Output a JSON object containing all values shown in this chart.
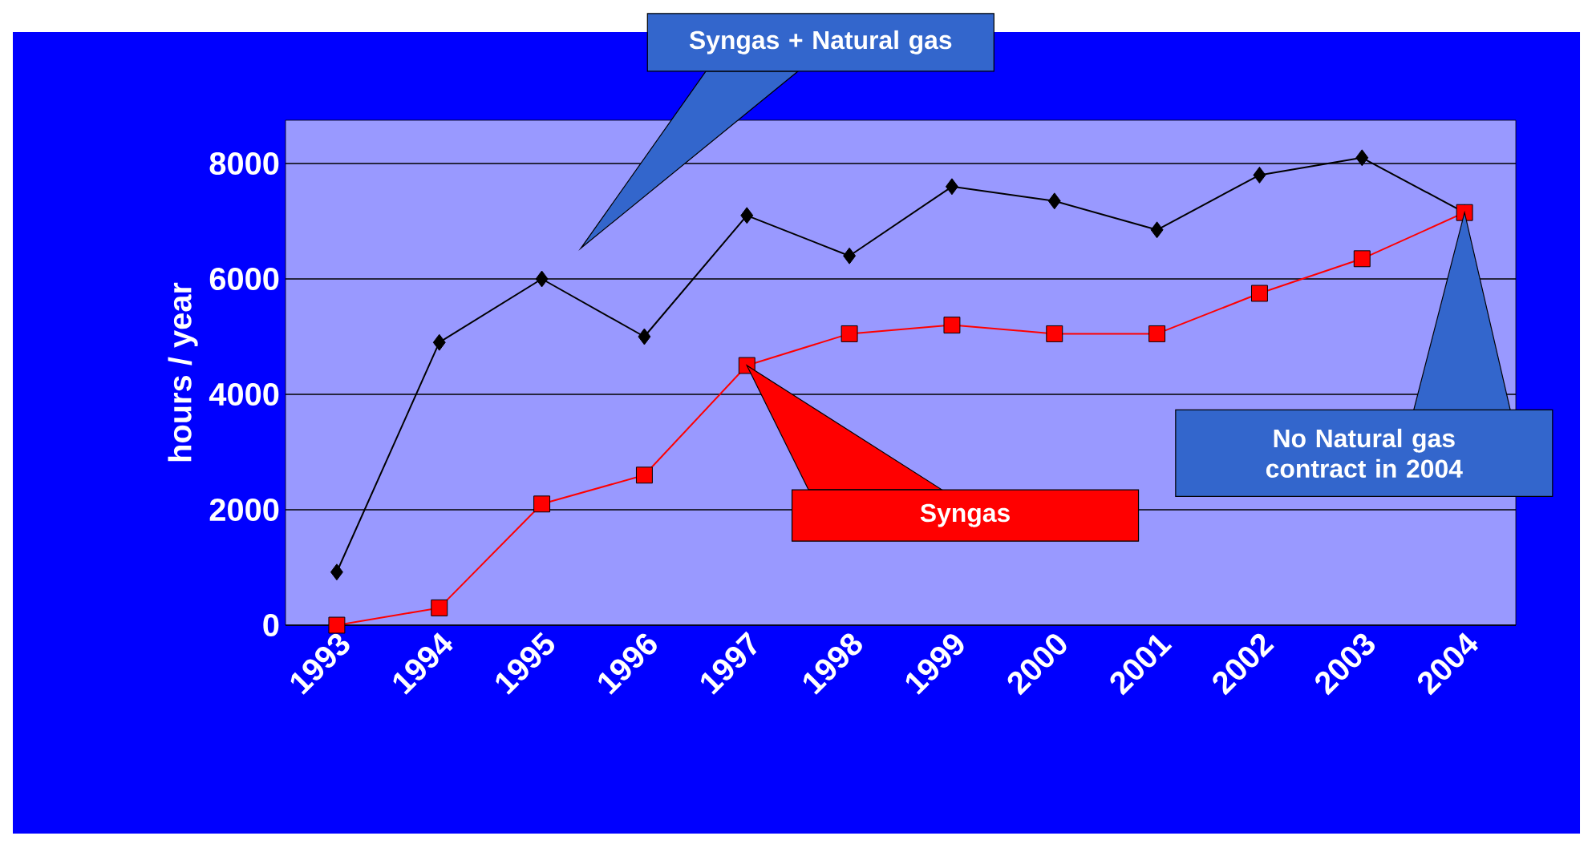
{
  "chart_data": {
    "type": "line",
    "categories": [
      "1993",
      "1994",
      "1995",
      "1996",
      "1997",
      "1998",
      "1999",
      "2000",
      "2001",
      "2002",
      "2003",
      "2004"
    ],
    "ylabel": "hours / year",
    "ylim": [
      0,
      8750
    ],
    "yticks": [
      0,
      2000,
      4000,
      6000,
      8000
    ],
    "grid": "y",
    "line_style": "solid",
    "series": [
      {
        "color": "#000000",
        "marker": "diamond",
        "values": [
          920,
          4900,
          6000,
          5000,
          7100,
          6400,
          7600,
          7350,
          6850,
          7800,
          8100,
          7150
        ]
      },
      {
        "color": "#ff0000",
        "marker": "square",
        "values": [
          0,
          300,
          2100,
          2600,
          4500,
          5050,
          5200,
          5050,
          5050,
          5750,
          6350,
          7150
        ]
      }
    ],
    "annotations": [
      "Syngas + Natural gas",
      "Syngas",
      {
        "text": "No Natural gas contract in 2004",
        "x": "2004",
        "y": 7150
      }
    ]
  }
}
